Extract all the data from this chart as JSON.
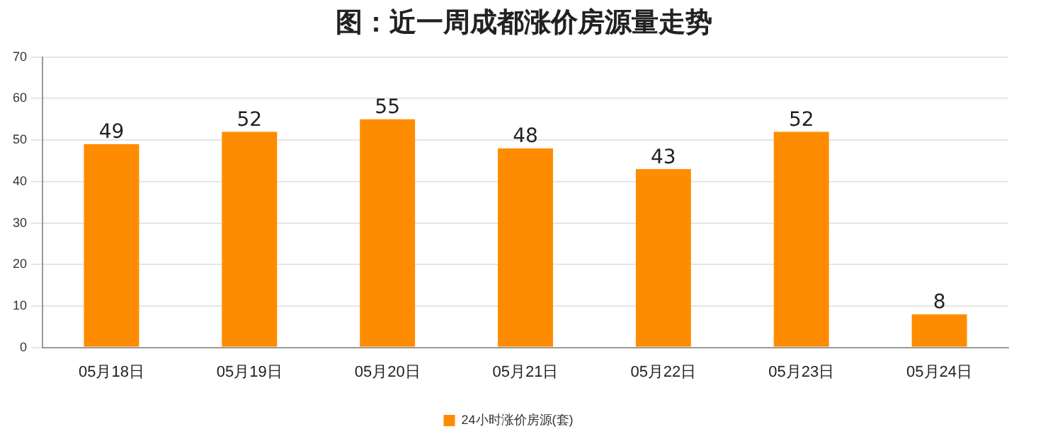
{
  "chart_data": {
    "type": "bar",
    "title": "图：近一周成都涨价房源量走势",
    "categories": [
      "05月18日",
      "05月19日",
      "05月20日",
      "05月21日",
      "05月22日",
      "05月23日",
      "05月24日"
    ],
    "series": [
      {
        "name": "24小时涨价房源(套)",
        "color": "#ff8c00",
        "values": [
          49,
          52,
          55,
          48,
          43,
          52,
          8
        ]
      }
    ],
    "ylim": [
      0,
      70
    ],
    "yticks": [
      0,
      10,
      20,
      30,
      40,
      50,
      60,
      70
    ],
    "grid": "y",
    "legend": "bottom",
    "data_labels": true
  }
}
